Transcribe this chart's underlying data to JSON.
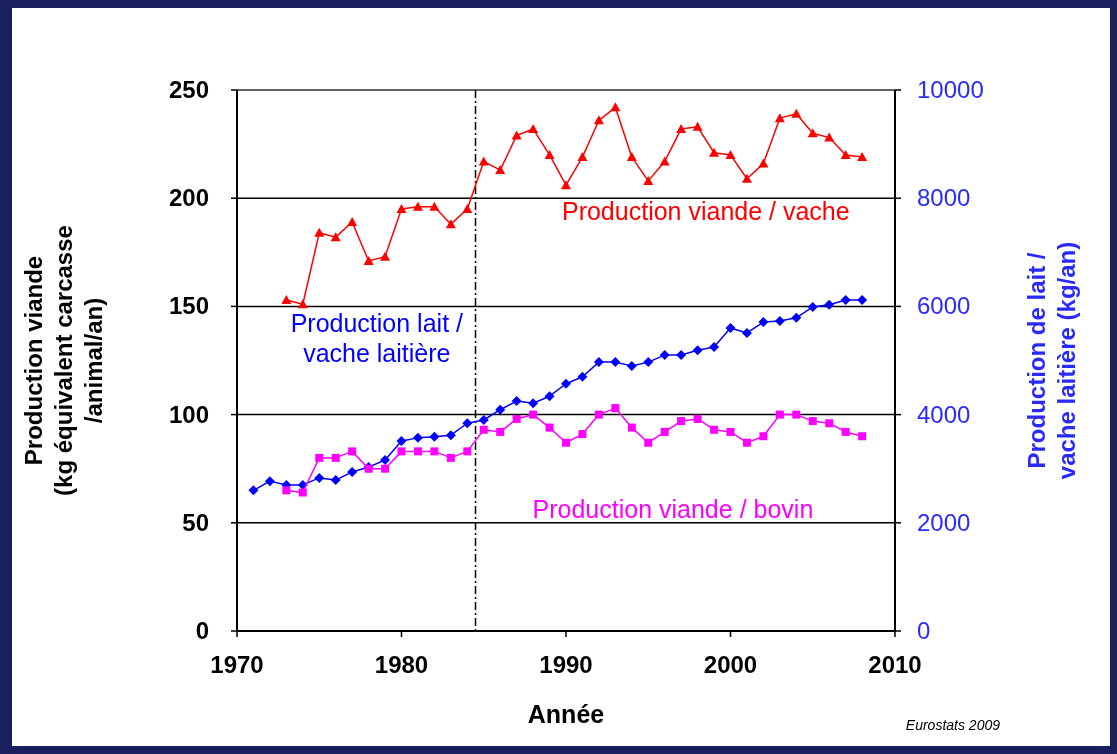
{
  "chart_data": {
    "type": "line",
    "xlabel": "Année",
    "ylabel": "Production viande\n(kg équivalent carcasse\n/animal/an)",
    "y2label": "Production de lait /\nvache laitière (kg/an)",
    "xlim": [
      1970,
      2010
    ],
    "xticks": [
      1970,
      1980,
      1990,
      2000,
      2010
    ],
    "ylim": [
      0,
      250
    ],
    "yticks": [
      0,
      50,
      100,
      150,
      200,
      250
    ],
    "y2lim": [
      0,
      10000
    ],
    "y2ticks": [
      0,
      2000,
      4000,
      6000,
      8000,
      10000
    ],
    "grid": "y",
    "ref_lines": [
      {
        "axis": "x",
        "value": 1984.5,
        "line_style": "dashed",
        "color": "#000000"
      }
    ],
    "annotations": [
      "Eurostats 2009"
    ],
    "series": [
      {
        "name": "Production viande / vache",
        "color": "#ff0000",
        "marker": "triangle",
        "x": [
          1973,
          1974,
          1975,
          1976,
          1977,
          1978,
          1979,
          1980,
          1981,
          1982,
          1983,
          1984,
          1985,
          1986,
          1987,
          1988,
          1989,
          1990,
          1991,
          1992,
          1993,
          1994,
          1995,
          1996,
          1997,
          1998,
          1999,
          2000,
          2001,
          2002,
          2003,
          2004,
          2005,
          2006,
          2007,
          2008
        ],
        "values": [
          153,
          151,
          184,
          182,
          189,
          171,
          173,
          195,
          196,
          196,
          188,
          195,
          217,
          213,
          229,
          232,
          220,
          206,
          219,
          236,
          242,
          219,
          208,
          217,
          232,
          233,
          221,
          220,
          209,
          216,
          237,
          239,
          230,
          228,
          220,
          219
        ]
      },
      {
        "name": "Production lait /\nvache laitière",
        "color": "#0000ff",
        "marker": "diamond",
        "axis": "y2",
        "x": [
          1971,
          1972,
          1973,
          1974,
          1975,
          1976,
          1977,
          1978,
          1979,
          1980,
          1981,
          1982,
          1983,
          1984,
          1985,
          1986,
          1987,
          1988,
          1989,
          1990,
          1991,
          1992,
          1993,
          1994,
          1995,
          1996,
          1997,
          1998,
          1999,
          2000,
          2001,
          2002,
          2003,
          2004,
          2005,
          2006,
          2007,
          2008
        ],
        "values": [
          2600,
          2770,
          2700,
          2700,
          2830,
          2790,
          2940,
          3030,
          3160,
          3510,
          3570,
          3590,
          3620,
          3840,
          3900,
          4090,
          4250,
          4210,
          4340,
          4570,
          4700,
          4970,
          4970,
          4900,
          4970,
          5100,
          5100,
          5190,
          5250,
          5600,
          5510,
          5710,
          5730,
          5790,
          5990,
          6030,
          6120,
          6120
        ]
      },
      {
        "name": "Production viande / bovin",
        "color": "#ff00ff",
        "marker": "square",
        "x": [
          1973,
          1974,
          1975,
          1976,
          1977,
          1978,
          1979,
          1980,
          1981,
          1982,
          1983,
          1984,
          1985,
          1986,
          1987,
          1988,
          1989,
          1990,
          1991,
          1992,
          1993,
          1994,
          1995,
          1996,
          1997,
          1998,
          1999,
          2000,
          2001,
          2002,
          2003,
          2004,
          2005,
          2006,
          2007,
          2008
        ],
        "values": [
          65,
          64,
          80,
          80,
          83,
          75,
          75,
          83,
          83,
          83,
          80,
          83,
          93,
          92,
          98,
          100,
          94,
          87,
          91,
          100,
          103,
          94,
          87,
          92,
          97,
          98,
          93,
          92,
          87,
          90,
          100,
          100,
          97,
          96,
          92,
          90
        ]
      }
    ]
  }
}
